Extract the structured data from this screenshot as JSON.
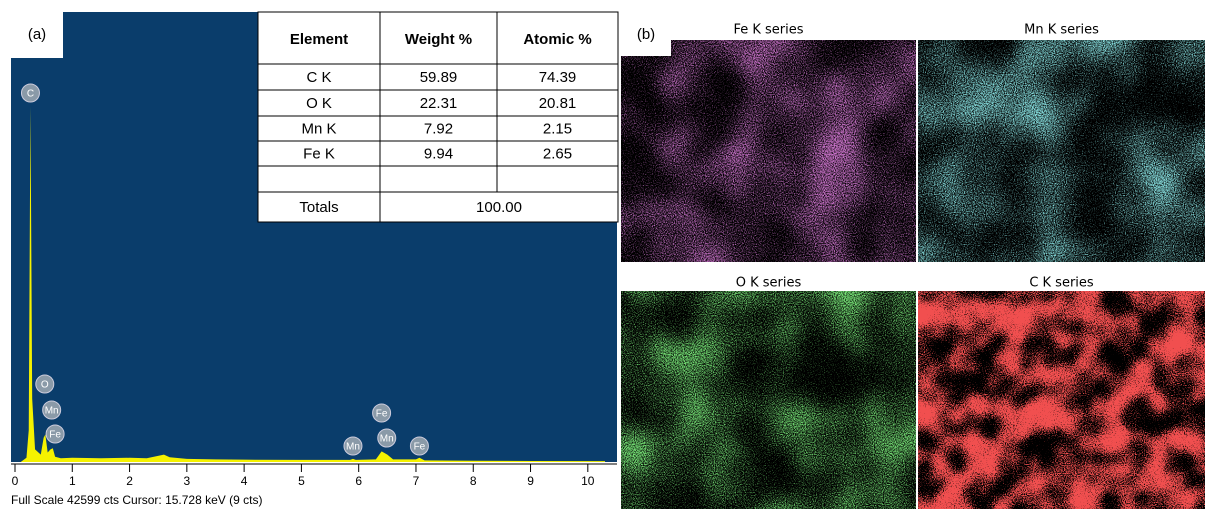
{
  "chart_data": {
    "type": "area",
    "panel_label": "(a)",
    "footer": "Full Scale 42599 cts  Cursor: 15.728 keV (9 cts)",
    "x": [
      0.1,
      0.2,
      0.24,
      0.27,
      0.3,
      0.35,
      0.45,
      0.5,
      0.53,
      0.57,
      0.62,
      0.66,
      0.7,
      0.8,
      1.0,
      1.5,
      2.0,
      2.3,
      2.6,
      2.7,
      3.0,
      3.5,
      4.0,
      5.0,
      5.85,
      5.9,
      5.95,
      6.3,
      6.4,
      6.5,
      6.6,
      7.0,
      7.06,
      7.15,
      8.0,
      9.0,
      10.3
    ],
    "values": [
      0,
      400,
      3000,
      33700,
      6000,
      1200,
      700,
      2300,
      2600,
      900,
      1200,
      1300,
      500,
      350,
      400,
      350,
      400,
      350,
      700,
      450,
      300,
      250,
      220,
      200,
      200,
      300,
      200,
      250,
      1000,
      700,
      250,
      250,
      400,
      150,
      120,
      100,
      80
    ],
    "color": "#f5f200",
    "background": "#0a3d6b",
    "xlim": [
      0,
      10.3
    ],
    "ylim": [
      0,
      42599
    ],
    "xticks": [
      0,
      1,
      2,
      3,
      4,
      5,
      6,
      7,
      8,
      9,
      10
    ],
    "peak_labels": [
      {
        "label": "C",
        "x": 0.27
      },
      {
        "label": "O",
        "x": 0.52
      },
      {
        "label": "Mn",
        "x": 0.64
      },
      {
        "label": "Fe",
        "x": 0.7
      },
      {
        "label": "Mn",
        "x": 5.9
      },
      {
        "label": "Fe",
        "x": 6.4
      },
      {
        "label": "Mn",
        "x": 6.49
      },
      {
        "label": "Fe",
        "x": 7.06
      }
    ]
  },
  "table": {
    "header": [
      "Element",
      "Weight %",
      "Atomic %"
    ],
    "rows": [
      [
        "C K",
        "59.89",
        "74.39"
      ],
      [
        "O K",
        "22.31",
        "20.81"
      ],
      [
        "Mn K",
        "7.92",
        "2.15"
      ],
      [
        "Fe K",
        "9.94",
        "2.65"
      ]
    ],
    "totals": [
      "Totals",
      "100.00"
    ]
  },
  "maps": {
    "panel_label": "(b)",
    "items": [
      {
        "title": "Fe K series",
        "color": "#9a2c9a"
      },
      {
        "title": "Mn K series",
        "color": "#3fc0c0"
      },
      {
        "title": "O K series",
        "color": "#2ec42e"
      },
      {
        "title": "C K series",
        "color": "#e01414"
      }
    ]
  }
}
